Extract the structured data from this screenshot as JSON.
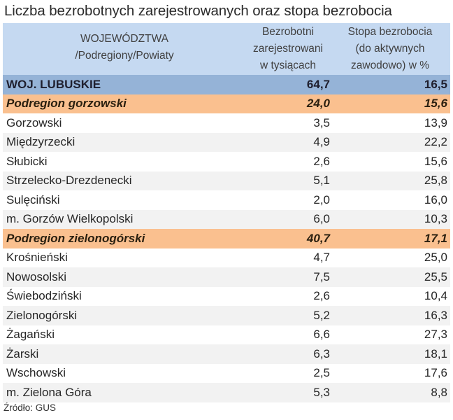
{
  "title": "Liczba bezrobotnych zarejestrowanych oraz stopa bezrobocia",
  "header": {
    "col0_line1": "WOJEWÓDZTWA",
    "col0_line2": "/Podregiony/Powiaty",
    "col1_line1": "Bezrobotni",
    "col1_line2": "zarejestrowani",
    "col1_line3": "w tysiącach",
    "col2_line1": "Stopa bezrobocia",
    "col2_line2": "(do aktywnych",
    "col2_line3": "zawodowo) w %"
  },
  "rows": [
    {
      "name": "WOJ. LUBUSKIE",
      "unemployed": "64,7",
      "rate": "16,5",
      "type": "woj"
    },
    {
      "name": "Podregion gorzowski",
      "unemployed": "24,0",
      "rate": "15,6",
      "type": "sub"
    },
    {
      "name": "Gorzowski",
      "unemployed": "3,5",
      "rate": "13,9",
      "type": "white"
    },
    {
      "name": "Międzyrzecki",
      "unemployed": "4,9",
      "rate": "22,2",
      "type": "gray"
    },
    {
      "name": "Słubicki",
      "unemployed": "2,6",
      "rate": "15,6",
      "type": "white"
    },
    {
      "name": "Strzelecko-Drezdenecki",
      "unemployed": "5,1",
      "rate": "25,8",
      "type": "gray"
    },
    {
      "name": "Sulęciński",
      "unemployed": "2,0",
      "rate": "16,0",
      "type": "white"
    },
    {
      "name": "m. Gorzów Wielkopolski",
      "unemployed": "6,0",
      "rate": "10,3",
      "type": "gray"
    },
    {
      "name": "Podregion zielonogórski",
      "unemployed": "40,7",
      "rate": "17,1",
      "type": "sub"
    },
    {
      "name": "Krośnieński",
      "unemployed": "4,7",
      "rate": "25,0",
      "type": "white"
    },
    {
      "name": "Nowosolski",
      "unemployed": "7,5",
      "rate": "25,5",
      "type": "gray"
    },
    {
      "name": "Świebodziński",
      "unemployed": "2,6",
      "rate": "10,4",
      "type": "white"
    },
    {
      "name": "Zielonogórski",
      "unemployed": "5,2",
      "rate": "16,3",
      "type": "gray"
    },
    {
      "name": "Żagański",
      "unemployed": "6,6",
      "rate": "27,3",
      "type": "white"
    },
    {
      "name": "Żarski",
      "unemployed": "6,3",
      "rate": "18,1",
      "type": "gray"
    },
    {
      "name": "Wschowski",
      "unemployed": "2,5",
      "rate": "17,6",
      "type": "white"
    },
    {
      "name": "m. Zielona Góra",
      "unemployed": "5,3",
      "rate": "8,8",
      "type": "gray"
    }
  ],
  "source": "Źródło: GUS",
  "colors": {
    "header_bg": "#c5d9f1",
    "woj_bg": "#95b3d7",
    "subregion_bg": "#fac08f",
    "alt_row_bg": "#f2f2f2"
  }
}
